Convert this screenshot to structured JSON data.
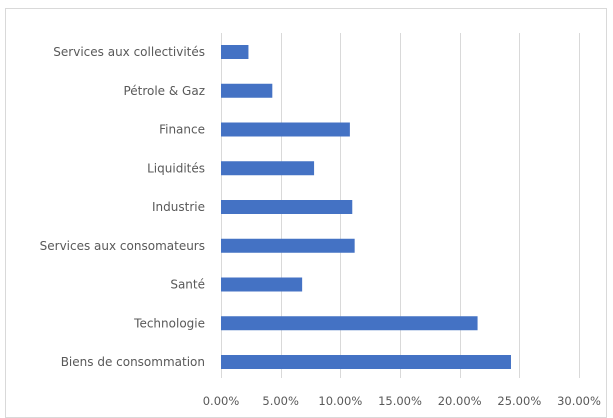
{
  "chart_data": {
    "type": "bar",
    "orientation": "horizontal",
    "title": "",
    "xlabel": "",
    "ylabel": "",
    "categories": [
      "Services aux collectivités",
      "Pétrole & Gaz",
      "Finance",
      "Liquidités",
      "Industrie",
      "Services aux consomateurs",
      "Santé",
      "Technologie",
      "Biens de consommation"
    ],
    "values": [
      0.023,
      0.043,
      0.108,
      0.078,
      0.11,
      0.112,
      0.068,
      0.215,
      0.243
    ],
    "xlim": [
      0,
      0.3
    ],
    "x_ticks": [
      0,
      0.05,
      0.1,
      0.15,
      0.2,
      0.25,
      0.3
    ],
    "x_tick_labels": [
      "0.00%",
      "5.00%",
      "10.00%",
      "15.00%",
      "20.00%",
      "25.00%",
      "30.00%"
    ],
    "grid": "vertical gridlines",
    "legend": "none",
    "colors": {
      "bar": "#4472c4",
      "gridline": "#d9d9d9",
      "text": "#595959"
    }
  }
}
